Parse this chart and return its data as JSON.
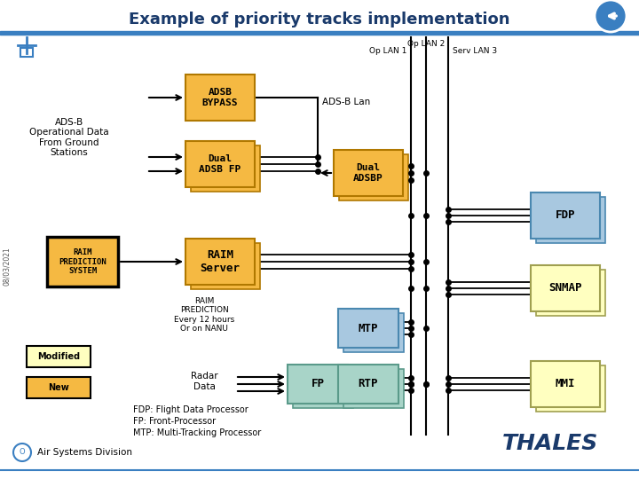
{
  "title": "Example of priority tracks implementation",
  "title_color": "#1a3a6b",
  "title_fontsize": 13,
  "bg_color": "#FFFFFF",
  "header_bar_color": "#3a7fc1",
  "colors": {
    "orange_box": "#F5B942",
    "orange_box_edge": "#B07800",
    "teal_box": "#A8D4C8",
    "teal_box_edge": "#5A9A8A",
    "blue_box": "#A8C8E0",
    "blue_box_edge": "#4A88B0",
    "yellow_box": "#FFFFC0",
    "yellow_box_edge": "#A0A050",
    "raim_edge": "#000000",
    "legend_modified": "#FFFFC0",
    "legend_new": "#F5B942"
  },
  "lan_labels": {
    "op_lan1": "Op LAN 1",
    "op_lan2": "Op LAN 2",
    "serv_lan3": "Serv LAN 3"
  },
  "left_label": "ADS-B\nOperational Data\nFrom Ground\nStations",
  "footnotes": [
    "FDP: Flight Data Processor",
    "FP: Front-Processor",
    "MTP: Multi-Tracking Processor"
  ],
  "thales_text": "THALES",
  "air_systems": "Air Systems Division",
  "date_text": "08/03/2021",
  "ads_b_lan_label": "ADS-B Lan",
  "raim_note": "RAIM\nPREDICTION\nEvery 12 hours\nOr on NANU",
  "radar_data_label": "Radar\nData"
}
